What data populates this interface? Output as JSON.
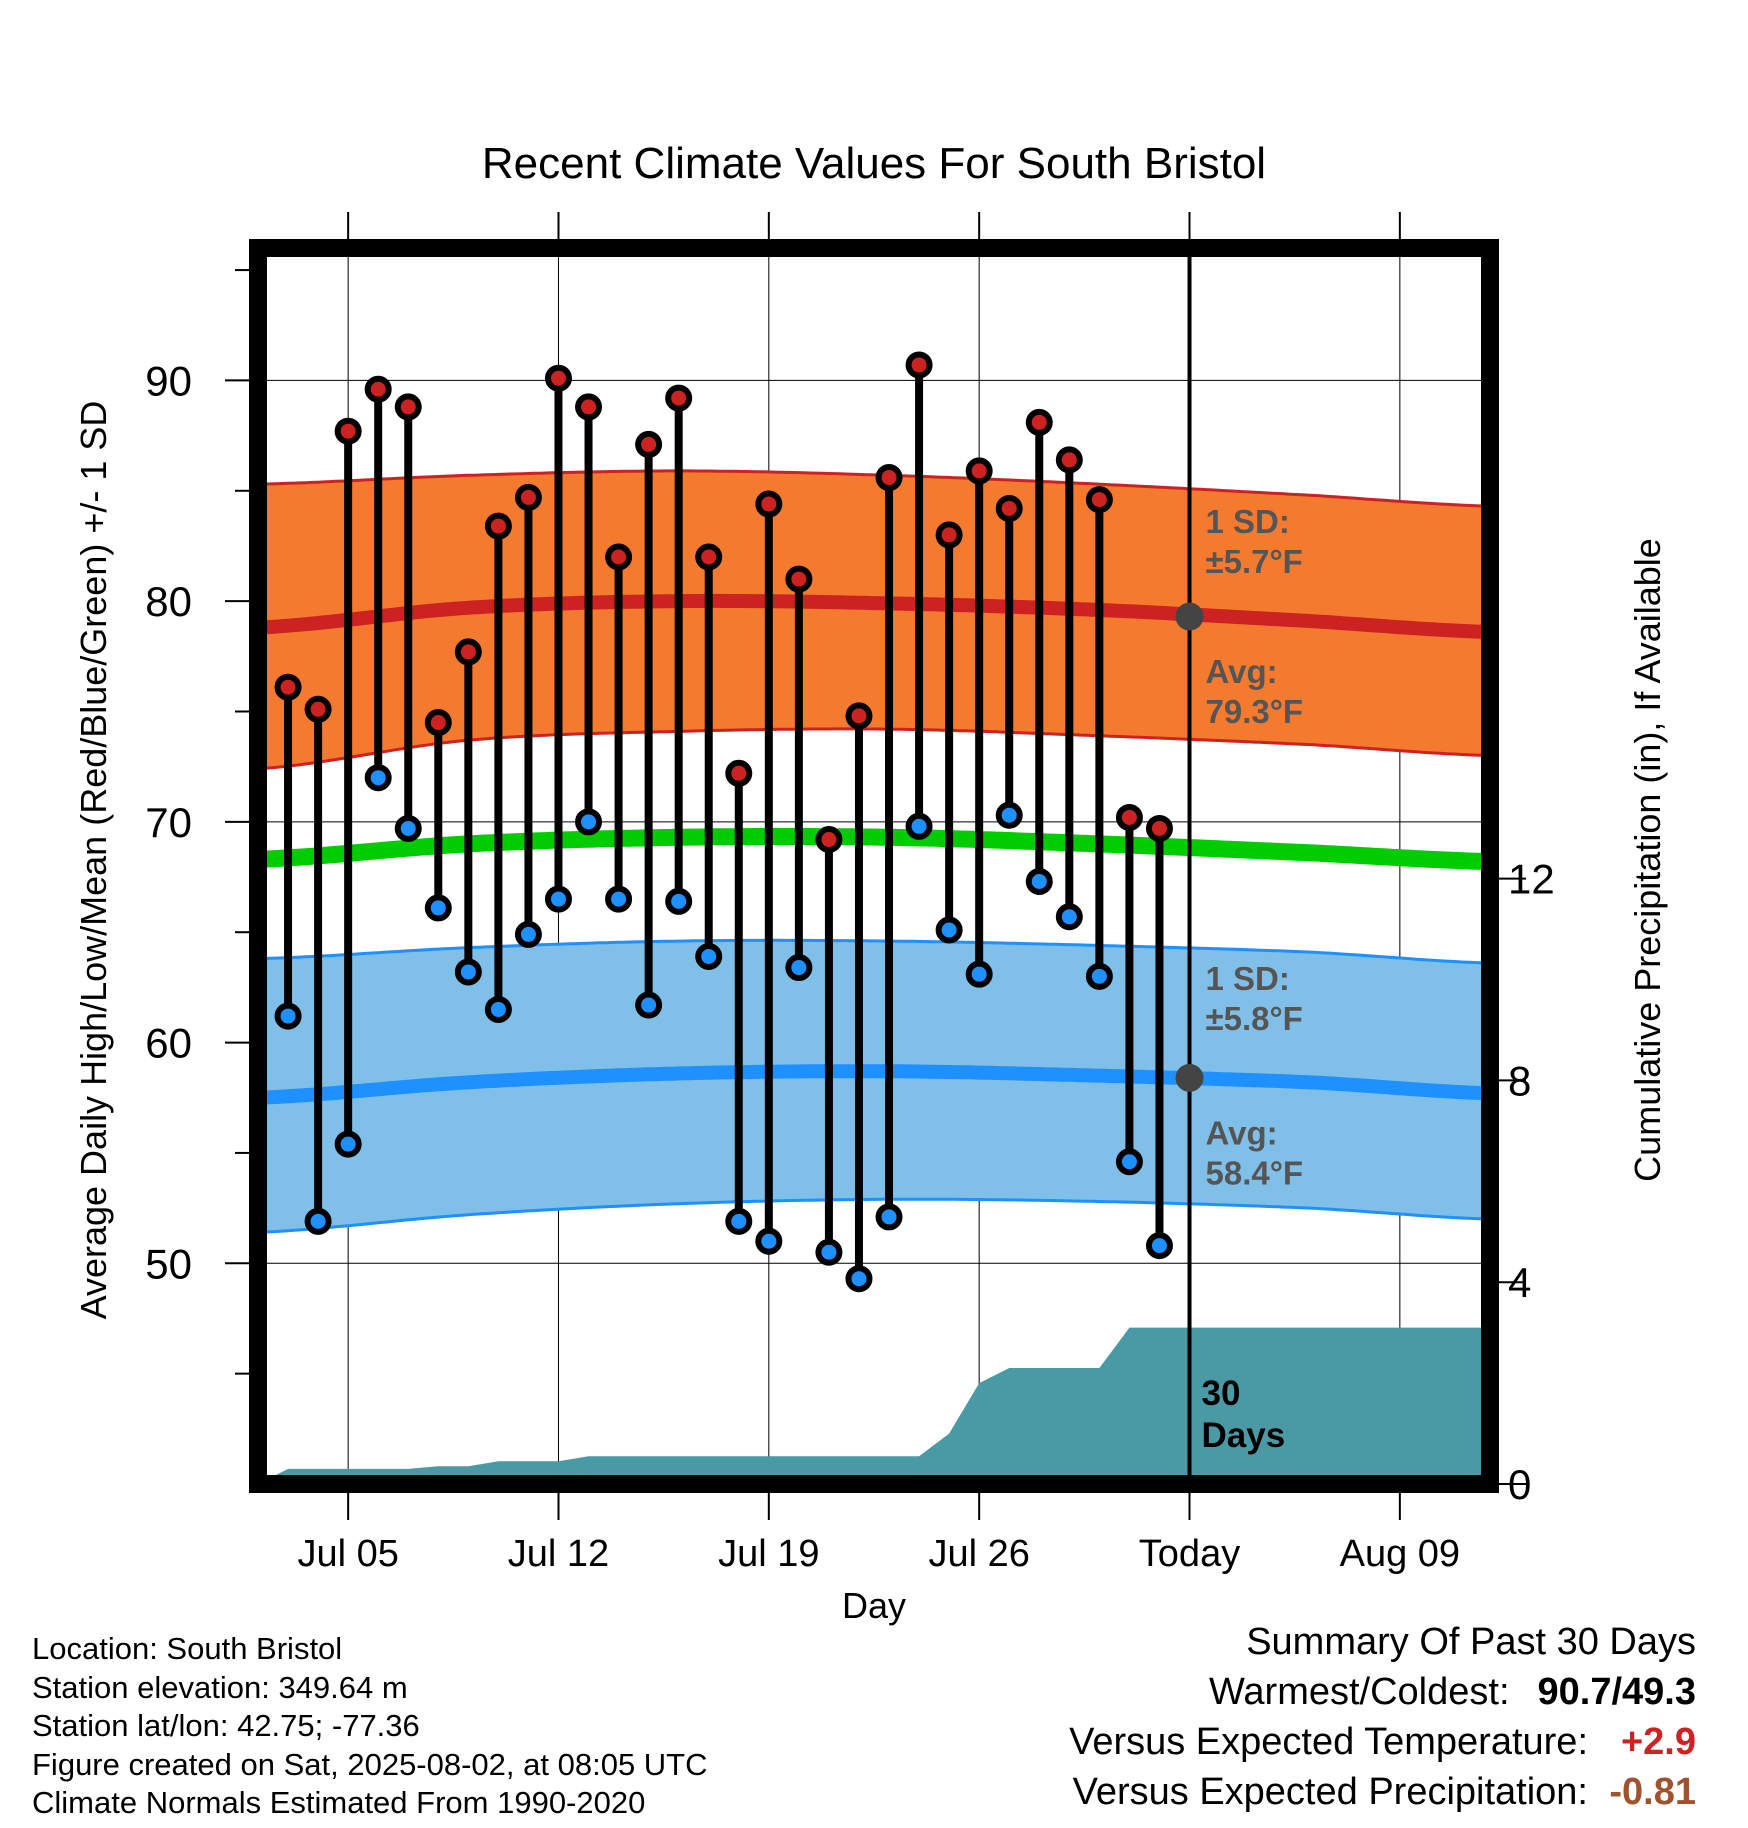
{
  "chart_data": {
    "type": "line",
    "title": "Recent Climate Values For South Bristol",
    "xlabel": "Day",
    "ylabel": "Average Daily High/Low/Mean (Red/Blue/Green) +/- 1 SD",
    "y2label": "Cumulative Precipitation (in), If Available",
    "ylim": [
      40,
      96
    ],
    "y2lim": [
      0,
      24.5
    ],
    "yticks": [
      50,
      60,
      70,
      80,
      90
    ],
    "y2ticks": [
      0,
      4,
      8,
      12
    ],
    "xlim": [
      "2025-07-02",
      "2025-08-12"
    ],
    "xticks": [
      {
        "date": "2025-07-05",
        "label": "Jul 05"
      },
      {
        "date": "2025-07-12",
        "label": "Jul 12"
      },
      {
        "date": "2025-07-19",
        "label": "Jul 19"
      },
      {
        "date": "2025-07-26",
        "label": "Jul 26"
      },
      {
        "date": "2025-08-02",
        "label": "Today"
      },
      {
        "date": "2025-08-09",
        "label": "Aug 09"
      }
    ],
    "today": "2025-08-02",
    "period_label": "30 Days",
    "grid": true,
    "series": [
      {
        "name": "High",
        "color": "#cc2222",
        "dates": [
          "2025-07-03",
          "2025-07-04",
          "2025-07-05",
          "2025-07-06",
          "2025-07-07",
          "2025-07-08",
          "2025-07-09",
          "2025-07-10",
          "2025-07-11",
          "2025-07-12",
          "2025-07-13",
          "2025-07-14",
          "2025-07-15",
          "2025-07-16",
          "2025-07-17",
          "2025-07-18",
          "2025-07-19",
          "2025-07-20",
          "2025-07-21",
          "2025-07-22",
          "2025-07-23",
          "2025-07-24",
          "2025-07-25",
          "2025-07-26",
          "2025-07-27",
          "2025-07-28",
          "2025-07-29",
          "2025-07-30",
          "2025-07-31",
          "2025-08-01"
        ],
        "values": [
          76.1,
          75.1,
          87.7,
          89.6,
          88.8,
          74.5,
          77.7,
          83.4,
          84.7,
          90.1,
          88.8,
          82.0,
          87.1,
          89.2,
          82.0,
          72.2,
          84.4,
          81.0,
          69.2,
          74.8,
          85.6,
          90.7,
          83.0,
          85.9,
          84.2,
          88.1,
          86.4,
          84.6,
          70.2,
          69.7
        ]
      },
      {
        "name": "Low",
        "color": "#1e90ff",
        "dates": [
          "2025-07-03",
          "2025-07-04",
          "2025-07-05",
          "2025-07-06",
          "2025-07-07",
          "2025-07-08",
          "2025-07-09",
          "2025-07-10",
          "2025-07-11",
          "2025-07-12",
          "2025-07-13",
          "2025-07-14",
          "2025-07-15",
          "2025-07-16",
          "2025-07-17",
          "2025-07-18",
          "2025-07-19",
          "2025-07-20",
          "2025-07-21",
          "2025-07-22",
          "2025-07-23",
          "2025-07-24",
          "2025-07-25",
          "2025-07-26",
          "2025-07-27",
          "2025-07-28",
          "2025-07-29",
          "2025-07-30",
          "2025-07-31",
          "2025-08-01"
        ],
        "values": [
          61.2,
          51.9,
          55.4,
          72.0,
          69.7,
          66.1,
          63.2,
          61.5,
          64.9,
          66.5,
          70.0,
          66.5,
          61.7,
          66.4,
          63.9,
          51.9,
          51.0,
          63.4,
          50.5,
          49.3,
          52.1,
          69.8,
          65.1,
          63.1,
          70.3,
          67.3,
          65.7,
          63.0,
          54.6,
          50.8
        ]
      },
      {
        "name": "Normal High",
        "color": "#cc2222",
        "dates": [
          "2025-07-02",
          "2025-07-09",
          "2025-07-16",
          "2025-07-23",
          "2025-07-30",
          "2025-08-06",
          "2025-08-12"
        ],
        "values": [
          78.8,
          79.7,
          80.0,
          79.9,
          79.6,
          79.1,
          78.6
        ]
      },
      {
        "name": "Normal High + 1 SD",
        "color": "#cc2222",
        "dates": [
          "2025-07-02",
          "2025-07-09",
          "2025-07-16",
          "2025-07-23",
          "2025-07-30",
          "2025-08-06",
          "2025-08-12"
        ],
        "values": [
          85.3,
          85.7,
          85.9,
          85.7,
          85.3,
          84.8,
          84.3
        ]
      },
      {
        "name": "Normal High - 1 SD",
        "color": "#cc2222",
        "dates": [
          "2025-07-02",
          "2025-07-09",
          "2025-07-16",
          "2025-07-23",
          "2025-07-30",
          "2025-08-06",
          "2025-08-12"
        ],
        "values": [
          72.4,
          73.7,
          74.1,
          74.2,
          73.9,
          73.5,
          73.0
        ]
      },
      {
        "name": "Normal Mean",
        "color": "#00cc00",
        "dates": [
          "2025-07-02",
          "2025-07-09",
          "2025-07-16",
          "2025-07-23",
          "2025-07-30",
          "2025-08-06",
          "2025-08-12"
        ],
        "values": [
          68.3,
          69.0,
          69.3,
          69.3,
          69.0,
          68.6,
          68.2
        ]
      },
      {
        "name": "Normal Low",
        "color": "#1e90ff",
        "dates": [
          "2025-07-02",
          "2025-07-09",
          "2025-07-16",
          "2025-07-23",
          "2025-07-30",
          "2025-08-06",
          "2025-08-12"
        ],
        "values": [
          57.5,
          58.2,
          58.6,
          58.7,
          58.5,
          58.2,
          57.7
        ]
      },
      {
        "name": "Normal Low + 1 SD",
        "color": "#1e90ff",
        "dates": [
          "2025-07-02",
          "2025-07-09",
          "2025-07-16",
          "2025-07-23",
          "2025-07-30",
          "2025-08-06",
          "2025-08-12"
        ],
        "values": [
          63.8,
          64.3,
          64.6,
          64.6,
          64.4,
          64.1,
          63.6
        ]
      },
      {
        "name": "Normal Low - 1 SD",
        "color": "#1e90ff",
        "dates": [
          "2025-07-02",
          "2025-07-09",
          "2025-07-16",
          "2025-07-23",
          "2025-07-30",
          "2025-08-06",
          "2025-08-12"
        ],
        "values": [
          51.4,
          52.2,
          52.7,
          52.9,
          52.8,
          52.5,
          52.0
        ]
      },
      {
        "name": "Cumulative Precipitation",
        "color": "#4a9aa5",
        "dates": [
          "2025-07-02",
          "2025-07-03",
          "2025-07-05",
          "2025-07-07",
          "2025-07-08",
          "2025-07-09",
          "2025-07-10",
          "2025-07-11",
          "2025-07-12",
          "2025-07-13",
          "2025-07-14",
          "2025-07-24",
          "2025-07-25",
          "2025-07-26",
          "2025-07-27",
          "2025-07-28",
          "2025-07-30",
          "2025-07-31",
          "2025-08-02",
          "2025-08-12"
        ],
        "values": [
          0.0,
          0.3,
          0.3,
          0.3,
          0.35,
          0.35,
          0.45,
          0.45,
          0.45,
          0.55,
          0.55,
          0.55,
          1.0,
          2.0,
          2.3,
          2.3,
          2.3,
          3.1,
          3.1,
          3.1
        ]
      }
    ],
    "annotations": [
      {
        "text_line1": "1 SD:",
        "text_line2": "±5.7°F",
        "series": "Normal High"
      },
      {
        "text_line1": "Avg:",
        "text_line2": "79.3°F",
        "series": "Normal High",
        "value": 79.3
      },
      {
        "text_line1": "1 SD:",
        "text_line2": "±5.8°F",
        "series": "Normal Low"
      },
      {
        "text_line1": "Avg:",
        "text_line2": "58.4°F",
        "series": "Normal Low",
        "value": 58.4
      }
    ]
  },
  "info": {
    "location": "Location: South Bristol",
    "elevation": "Station elevation: 349.64 m",
    "latlon": "Station lat/lon: 42.75; -77.36",
    "created": "Figure created on Sat, 2025-08-02, at 08:05 UTC",
    "normals": "Climate Normals Estimated From 1990-2020"
  },
  "summary": {
    "title": "Summary Of Past 30 Days",
    "warmest_label": "Warmest/Coldest:",
    "warmest_value": "90.7/49.3",
    "temp_label": "Versus Expected Temperature:",
    "temp_value": "+2.9",
    "temp_color": "#cc2222",
    "precip_label": "Versus Expected Precipitation:",
    "precip_value": "-0.81",
    "precip_color": "#a0522d"
  },
  "colors": {
    "high_band": "#f47a30",
    "low_band": "#80c0e8",
    "precip_fill": "#4a9aa5",
    "avg_marker": "#444444",
    "annotation_text": "#555555"
  }
}
